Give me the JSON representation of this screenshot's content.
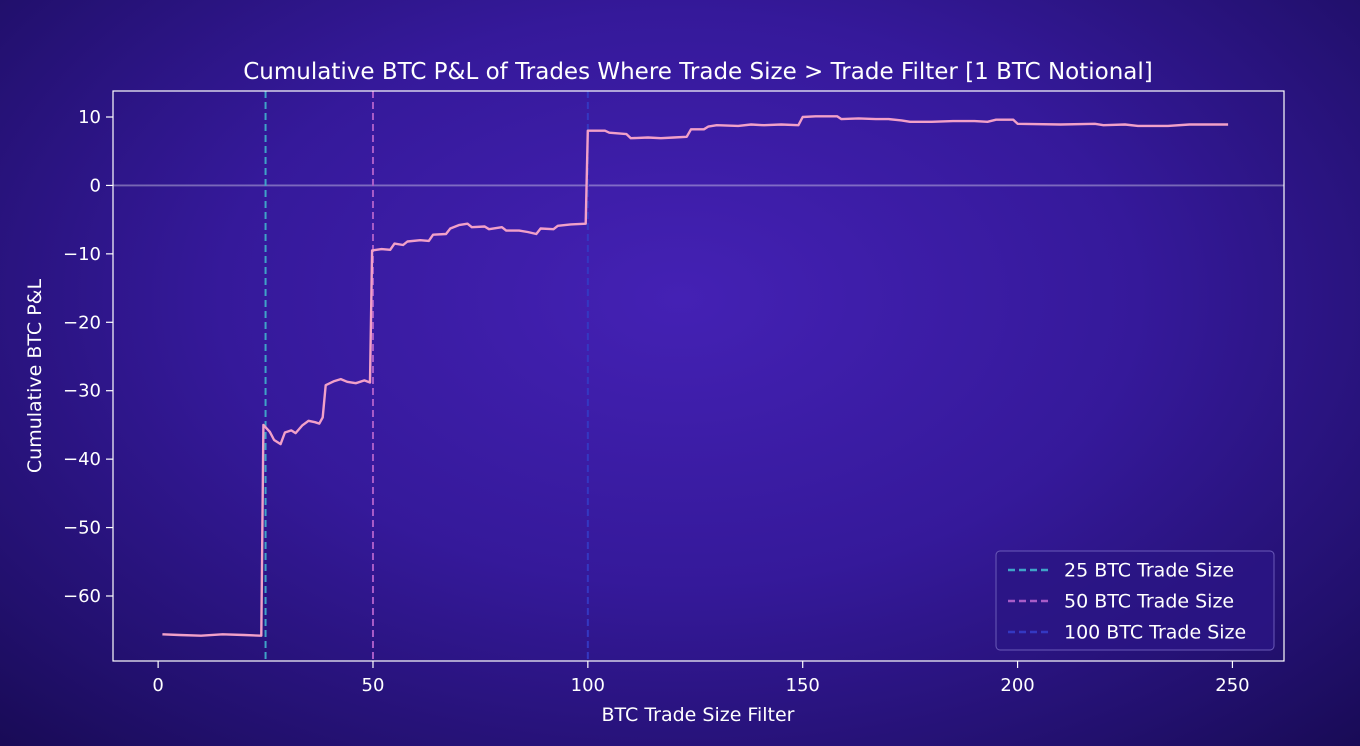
{
  "chart_data": {
    "type": "line",
    "title": "Cumulative BTC P&L of Trades Where Trade Size > Trade Filter [1 BTC Notional]",
    "xlabel": "BTC Trade Size Filter",
    "ylabel": "Cumulative BTC P&L",
    "xlim": [
      -10.5,
      262
    ],
    "ylim": [
      -69.5,
      13.8
    ],
    "xticks": [
      0,
      50,
      100,
      150,
      200,
      250
    ],
    "xtick_labels": [
      "0",
      "50",
      "100",
      "150",
      "200",
      "250"
    ],
    "yticks": [
      10,
      0,
      -10,
      -20,
      -30,
      -40,
      -50,
      -60
    ],
    "ytick_labels": [
      "10",
      "0",
      "−10",
      "−20",
      "−30",
      "−40",
      "−50",
      "−60"
    ],
    "grid": false,
    "zero_line": true,
    "legend_position": "lower-right",
    "series": [
      {
        "name": "",
        "color": "#f2a0c8",
        "points": [
          [
            1,
            -65.6
          ],
          [
            5,
            -65.7
          ],
          [
            10,
            -65.8
          ],
          [
            15,
            -65.6
          ],
          [
            20,
            -65.7
          ],
          [
            24,
            -65.8
          ],
          [
            24.5,
            -35.0
          ],
          [
            26,
            -36.0
          ],
          [
            27,
            -37.2
          ],
          [
            28.5,
            -37.8
          ],
          [
            29.5,
            -36.1
          ],
          [
            31,
            -35.8
          ],
          [
            32,
            -36.2
          ],
          [
            33.5,
            -35.1
          ],
          [
            35,
            -34.4
          ],
          [
            36.5,
            -34.6
          ],
          [
            37.5,
            -34.8
          ],
          [
            38.3,
            -33.9
          ],
          [
            39,
            -29.2
          ],
          [
            41,
            -28.6
          ],
          [
            42.5,
            -28.3
          ],
          [
            44,
            -28.7
          ],
          [
            46,
            -28.9
          ],
          [
            48,
            -28.5
          ],
          [
            49.3,
            -28.8
          ],
          [
            49.8,
            -9.5
          ],
          [
            52,
            -9.3
          ],
          [
            54,
            -9.4
          ],
          [
            55,
            -8.5
          ],
          [
            57,
            -8.7
          ],
          [
            58,
            -8.2
          ],
          [
            61,
            -8.0
          ],
          [
            63,
            -8.1
          ],
          [
            64,
            -7.2
          ],
          [
            67,
            -7.1
          ],
          [
            68,
            -6.3
          ],
          [
            70,
            -5.8
          ],
          [
            72,
            -5.6
          ],
          [
            73,
            -6.1
          ],
          [
            76,
            -6.0
          ],
          [
            77,
            -6.4
          ],
          [
            80,
            -6.1
          ],
          [
            81,
            -6.6
          ],
          [
            84,
            -6.6
          ],
          [
            86,
            -6.8
          ],
          [
            88,
            -7.1
          ],
          [
            89,
            -6.3
          ],
          [
            92,
            -6.4
          ],
          [
            93,
            -5.9
          ],
          [
            96,
            -5.7
          ],
          [
            99.5,
            -5.6
          ],
          [
            100,
            8.0
          ],
          [
            104,
            8.0
          ],
          [
            105,
            7.7
          ],
          [
            109,
            7.5
          ],
          [
            110,
            6.9
          ],
          [
            114,
            7.0
          ],
          [
            117,
            6.9
          ],
          [
            120,
            7.0
          ],
          [
            123,
            7.1
          ],
          [
            124,
            8.2
          ],
          [
            127,
            8.2
          ],
          [
            128,
            8.6
          ],
          [
            130,
            8.8
          ],
          [
            135,
            8.7
          ],
          [
            138,
            8.9
          ],
          [
            141,
            8.8
          ],
          [
            145,
            8.9
          ],
          [
            149,
            8.8
          ],
          [
            150,
            10.0
          ],
          [
            153,
            10.1
          ],
          [
            158,
            10.1
          ],
          [
            159,
            9.7
          ],
          [
            163,
            9.8
          ],
          [
            167,
            9.7
          ],
          [
            170,
            9.7
          ],
          [
            173,
            9.5
          ],
          [
            175,
            9.3
          ],
          [
            180,
            9.3
          ],
          [
            185,
            9.4
          ],
          [
            190,
            9.4
          ],
          [
            193,
            9.3
          ],
          [
            195,
            9.6
          ],
          [
            199,
            9.6
          ],
          [
            200,
            9.0
          ],
          [
            210,
            8.9
          ],
          [
            218,
            9.0
          ],
          [
            220,
            8.8
          ],
          [
            225,
            8.9
          ],
          [
            228,
            8.7
          ],
          [
            235,
            8.7
          ],
          [
            240,
            8.9
          ],
          [
            245,
            8.9
          ],
          [
            249,
            8.9
          ]
        ]
      }
    ],
    "reference_lines": [
      {
        "name": "25 BTC Trade Size",
        "x": 25,
        "color": "#3fa3c8"
      },
      {
        "name": "50 BTC Trade Size",
        "x": 50,
        "color": "#a85cc8"
      },
      {
        "name": "100 BTC Trade Size",
        "x": 100,
        "color": "#3438c2"
      }
    ]
  }
}
